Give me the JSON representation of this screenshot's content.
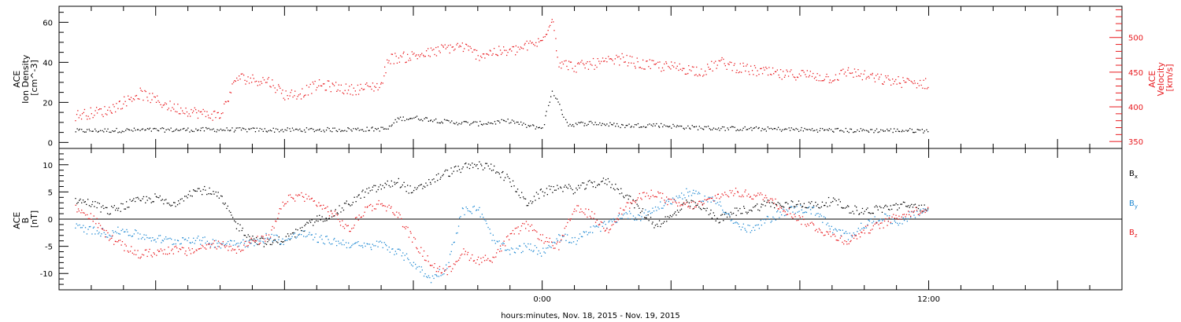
{
  "chart_data": [
    {
      "type": "scatter",
      "panel": "top",
      "ylabel_lines": [
        "ACE",
        "Ion Density",
        "[cm^-3]"
      ],
      "y2label_lines": [
        "ACE",
        "Velocity",
        "[km/s]"
      ],
      "ylim": [
        -3,
        68
      ],
      "y2lim": [
        340,
        545
      ],
      "y_ticks": [
        0,
        20,
        40,
        60
      ],
      "y2_ticks": [
        350,
        400,
        450,
        500
      ],
      "series": [
        {
          "color": "#000000",
          "axis": "left",
          "points": [
            [
              -14.5,
              6.0
            ],
            [
              -13,
              6.3
            ],
            [
              -11.5,
              6.5
            ],
            [
              -10,
              6.6
            ],
            [
              -8.5,
              6.4
            ],
            [
              -7,
              6.5
            ],
            [
              -5.5,
              6.8
            ],
            [
              -4.8,
              7.0
            ],
            [
              -4.5,
              12.0
            ],
            [
              -4,
              12.5
            ],
            [
              -3.5,
              11.8
            ],
            [
              -3,
              10.5
            ],
            [
              -2.5,
              10.0
            ],
            [
              -2,
              9.6
            ],
            [
              -1.5,
              10.2
            ],
            [
              -1,
              11.0
            ],
            [
              -0.5,
              8.5
            ],
            [
              0,
              7.5
            ],
            [
              0.3,
              26.0
            ],
            [
              0.8,
              9.0
            ],
            [
              1.5,
              10.0
            ],
            [
              2.5,
              8.5
            ],
            [
              3.5,
              9.0
            ],
            [
              4.5,
              7.8
            ],
            [
              5.5,
              7.2
            ],
            [
              6.5,
              7.0
            ],
            [
              7.5,
              6.8
            ],
            [
              8.5,
              6.5
            ],
            [
              9.5,
              6.2
            ],
            [
              10.5,
              6.2
            ],
            [
              11.5,
              6.2
            ],
            [
              12,
              6.1
            ]
          ]
        },
        {
          "color": "#e8191e",
          "axis": "right",
          "points": [
            [
              -14.5,
              388
            ],
            [
              -14,
              392
            ],
            [
              -13.5,
              395
            ],
            [
              -12.5,
              420
            ],
            [
              -12,
              410
            ],
            [
              -11.5,
              400
            ],
            [
              -10.5,
              390
            ],
            [
              -10,
              388
            ],
            [
              -9.5,
              443
            ],
            [
              -9,
              440
            ],
            [
              -8.5,
              438
            ],
            [
              -8,
              418
            ],
            [
              -7.5,
              420
            ],
            [
              -7,
              432
            ],
            [
              -6.5,
              430
            ],
            [
              -6,
              425
            ],
            [
              -5.5,
              428
            ],
            [
              -5,
              432
            ],
            [
              -4.8,
              470
            ],
            [
              -4.3,
              472
            ],
            [
              -3.5,
              478
            ],
            [
              -3,
              485
            ],
            [
              -2.5,
              488
            ],
            [
              -2,
              475
            ],
            [
              -1.5,
              480
            ],
            [
              -1,
              480
            ],
            [
              -0.5,
              488
            ],
            [
              0,
              495
            ],
            [
              0.3,
              533
            ],
            [
              0.5,
              465
            ],
            [
              1,
              458
            ],
            [
              1.5,
              462
            ],
            [
              2,
              465
            ],
            [
              2.5,
              470
            ],
            [
              3,
              462
            ],
            [
              3.5,
              460
            ],
            [
              4,
              458
            ],
            [
              4.5,
              455
            ],
            [
              5,
              452
            ],
            [
              5.5,
              465
            ],
            [
              6,
              458
            ],
            [
              6.5,
              453
            ],
            [
              7,
              450
            ],
            [
              7.5,
              446
            ],
            [
              8,
              448
            ],
            [
              8.5,
              445
            ],
            [
              9,
              442
            ],
            [
              9.5,
              452
            ],
            [
              10,
              445
            ],
            [
              10.5,
              440
            ],
            [
              11,
              437
            ],
            [
              11.5,
              435
            ],
            [
              12,
              434
            ]
          ]
        }
      ]
    },
    {
      "type": "scatter",
      "panel": "bottom",
      "ylabel_lines": [
        "ACE",
        "B",
        "[nT]"
      ],
      "ylim": [
        -13,
        13
      ],
      "y_ticks": [
        -10,
        -5,
        0,
        5,
        10
      ],
      "zero_line": true,
      "series": [
        {
          "name": "Bx",
          "color": "#000000",
          "points": [
            [
              -14.5,
              3.5
            ],
            [
              -14,
              3.0
            ],
            [
              -13.5,
              1.5
            ],
            [
              -13,
              2.5
            ],
            [
              -12.5,
              3.5
            ],
            [
              -12,
              4.0
            ],
            [
              -11.5,
              2.5
            ],
            [
              -11,
              5.0
            ],
            [
              -10.5,
              5.5
            ],
            [
              -10,
              4.0
            ],
            [
              -9.5,
              -1.0
            ],
            [
              -9,
              -3.5
            ],
            [
              -8.5,
              -4.5
            ],
            [
              -8,
              -3.5
            ],
            [
              -7.5,
              -2.0
            ],
            [
              -7,
              0.0
            ],
            [
              -6.5,
              1.0
            ],
            [
              -6,
              3.0
            ],
            [
              -5.5,
              5.0
            ],
            [
              -5,
              6.0
            ],
            [
              -4.5,
              7.0
            ],
            [
              -4,
              5.0
            ],
            [
              -3.5,
              7.0
            ],
            [
              -3,
              8.5
            ],
            [
              -2.5,
              9.5
            ],
            [
              -2,
              10.0
            ],
            [
              -1.5,
              9.5
            ],
            [
              -1,
              7.0
            ],
            [
              -0.5,
              3.0
            ],
            [
              0,
              5.0
            ],
            [
              0.5,
              6.0
            ],
            [
              1,
              5.5
            ],
            [
              1.5,
              6.5
            ],
            [
              2,
              7.0
            ],
            [
              2.5,
              5.0
            ],
            [
              3,
              2.0
            ],
            [
              3.5,
              -1.0
            ],
            [
              4,
              0.5
            ],
            [
              4.5,
              3.0
            ],
            [
              5,
              2.0
            ],
            [
              5.5,
              0.0
            ],
            [
              6,
              1.5
            ],
            [
              6.5,
              2.0
            ],
            [
              7,
              3.0
            ],
            [
              7.5,
              2.5
            ],
            [
              8,
              3.0
            ],
            [
              8.5,
              2.5
            ],
            [
              9,
              3.5
            ],
            [
              9.5,
              2.0
            ],
            [
              10,
              1.5
            ],
            [
              10.5,
              2.0
            ],
            [
              11,
              2.5
            ],
            [
              11.5,
              2.5
            ],
            [
              12,
              2.0
            ]
          ]
        },
        {
          "name": "By",
          "color": "#1e88d2",
          "points": [
            [
              -14.5,
              -1.5
            ],
            [
              -14,
              -2.0
            ],
            [
              -13.5,
              -2.5
            ],
            [
              -13,
              -2.0
            ],
            [
              -12.5,
              -3.0
            ],
            [
              -12,
              -3.5
            ],
            [
              -11.5,
              -4.0
            ],
            [
              -11,
              -3.5
            ],
            [
              -10.5,
              -4.0
            ],
            [
              -10,
              -4.5
            ],
            [
              -9.5,
              -4.0
            ],
            [
              -9,
              -4.5
            ],
            [
              -8.5,
              -3.0
            ],
            [
              -8,
              -4.0
            ],
            [
              -7.5,
              -2.5
            ],
            [
              -7,
              -3.5
            ],
            [
              -6.5,
              -4.0
            ],
            [
              -6,
              -4.5
            ],
            [
              -5.5,
              -5.0
            ],
            [
              -5,
              -4.5
            ],
            [
              -4.5,
              -6.0
            ],
            [
              -4,
              -8.0
            ],
            [
              -3.5,
              -11.0
            ],
            [
              -3,
              -9.0
            ],
            [
              -2.5,
              1.5
            ],
            [
              -2,
              2.0
            ],
            [
              -1.5,
              -4.0
            ],
            [
              -1,
              -6.0
            ],
            [
              -0.5,
              -5.0
            ],
            [
              0,
              -6.0
            ],
            [
              0.5,
              -3.0
            ],
            [
              1,
              -4.0
            ],
            [
              1.5,
              -2.0
            ],
            [
              2,
              -1.0
            ],
            [
              2.5,
              1.0
            ],
            [
              3,
              0.5
            ],
            [
              3.5,
              2.0
            ],
            [
              4,
              3.5
            ],
            [
              4.5,
              5.0
            ],
            [
              5,
              4.0
            ],
            [
              5.5,
              3.0
            ],
            [
              6,
              -1.0
            ],
            [
              6.5,
              -2.0
            ],
            [
              7,
              0.0
            ],
            [
              7.5,
              1.5
            ],
            [
              8,
              2.0
            ],
            [
              8.5,
              1.5
            ],
            [
              9,
              -2.0
            ],
            [
              9.5,
              -3.0
            ],
            [
              10,
              -1.0
            ],
            [
              10.5,
              0.5
            ],
            [
              11,
              -0.5
            ],
            [
              11.5,
              1.0
            ],
            [
              12,
              2.0
            ]
          ]
        },
        {
          "name": "Bz",
          "color": "#e8191e",
          "points": [
            [
              -14.5,
              2.0
            ],
            [
              -14,
              0.5
            ],
            [
              -13.5,
              -3.0
            ],
            [
              -13,
              -5.0
            ],
            [
              -12.5,
              -6.5
            ],
            [
              -12,
              -6.0
            ],
            [
              -11.5,
              -5.5
            ],
            [
              -11,
              -6.0
            ],
            [
              -10.5,
              -5.0
            ],
            [
              -10,
              -4.5
            ],
            [
              -9.5,
              -5.5
            ],
            [
              -9,
              -4.0
            ],
            [
              -8.5,
              -3.5
            ],
            [
              -8,
              3.5
            ],
            [
              -7.5,
              4.5
            ],
            [
              -7,
              3.0
            ],
            [
              -6.5,
              1.0
            ],
            [
              -6,
              -2.0
            ],
            [
              -5.5,
              2.0
            ],
            [
              -5,
              3.0
            ],
            [
              -4.5,
              1.0
            ],
            [
              -4,
              -4.0
            ],
            [
              -3.5,
              -8.0
            ],
            [
              -3,
              -10.0
            ],
            [
              -2.5,
              -6.0
            ],
            [
              -2,
              -7.5
            ],
            [
              -1.5,
              -7.0
            ],
            [
              -1,
              -3.0
            ],
            [
              -0.5,
              -1.0
            ],
            [
              0,
              -3.5
            ],
            [
              0.5,
              -5.0
            ],
            [
              1,
              2.0
            ],
            [
              1.5,
              1.0
            ],
            [
              2,
              -2.0
            ],
            [
              2.5,
              2.0
            ],
            [
              3,
              4.0
            ],
            [
              3.5,
              5.0
            ],
            [
              4,
              3.0
            ],
            [
              4.5,
              2.5
            ],
            [
              5,
              3.0
            ],
            [
              5.5,
              4.5
            ],
            [
              6,
              5.0
            ],
            [
              6.5,
              4.5
            ],
            [
              7,
              4.0
            ],
            [
              7.5,
              2.0
            ],
            [
              8,
              0.0
            ],
            [
              8.5,
              -1.5
            ],
            [
              9,
              -3.0
            ],
            [
              9.5,
              -4.0
            ],
            [
              10,
              -2.0
            ],
            [
              10.5,
              -1.0
            ],
            [
              11,
              0.5
            ],
            [
              11.5,
              1.5
            ],
            [
              12,
              2.0
            ]
          ]
        }
      ]
    }
  ],
  "x_axis": {
    "label": "hours:minutes, Nov. 18, 2015 - Nov. 19, 2015",
    "range_hours": [
      -15,
      18
    ],
    "labeled_ticks": [
      {
        "hours": 0,
        "label": "0:00"
      },
      {
        "hours": 12,
        "label": "12:00"
      }
    ]
  },
  "legend": {
    "bx": {
      "base": "B",
      "sub": "x",
      "color": "#000000"
    },
    "by": {
      "base": "B",
      "sub": "y",
      "color": "#1e88d2"
    },
    "bz": {
      "base": "B",
      "sub": "z",
      "color": "#e8191e"
    }
  },
  "colors": {
    "density": "#000000",
    "velocity": "#e8191e",
    "bx": "#000000",
    "by": "#1e88d2",
    "bz": "#e8191e"
  }
}
